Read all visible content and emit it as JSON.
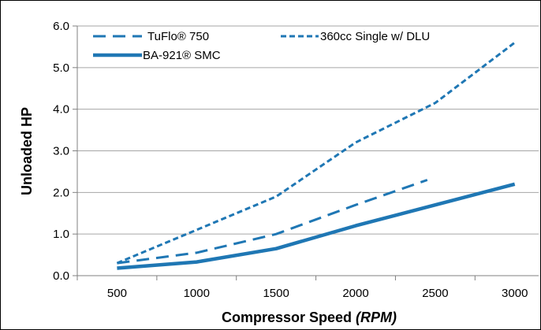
{
  "chart_data": {
    "type": "line",
    "title": "",
    "xlabel": "Compressor Speed ",
    "xlabel_unit": "(RPM)",
    "ylabel": "Unloaded HP",
    "xlim": [
      250,
      3150
    ],
    "ylim": [
      0,
      6
    ],
    "x_ticks": [
      500,
      1000,
      1500,
      2000,
      2500,
      3000
    ],
    "y_ticks": [
      0,
      1,
      2,
      3,
      4,
      5,
      6
    ],
    "y_tick_labels": [
      "0.0",
      "1.0",
      "2.0",
      "3.0",
      "4.0",
      "5.0",
      "6.0"
    ],
    "grid": "horizontal",
    "legend_position": "top-left",
    "series": [
      {
        "name": "TuFlo® 750",
        "style": "long-dash",
        "color": "#1f77b4",
        "x": [
          500,
          1000,
          1500,
          2000,
          2450
        ],
        "y": [
          0.3,
          0.55,
          1.0,
          1.7,
          2.3
        ]
      },
      {
        "name": "360cc Single w/ DLU",
        "style": "short-dash",
        "color": "#1f77b4",
        "x": [
          500,
          1000,
          1500,
          2000,
          2500,
          3000
        ],
        "y": [
          0.3,
          1.1,
          1.9,
          3.2,
          4.15,
          5.6
        ]
      },
      {
        "name": "BA-921® SMC",
        "style": "solid-thick",
        "color": "#1f77b4",
        "x": [
          500,
          1000,
          1500,
          2000,
          2500,
          3000
        ],
        "y": [
          0.18,
          0.33,
          0.65,
          1.2,
          1.7,
          2.2
        ]
      }
    ]
  }
}
